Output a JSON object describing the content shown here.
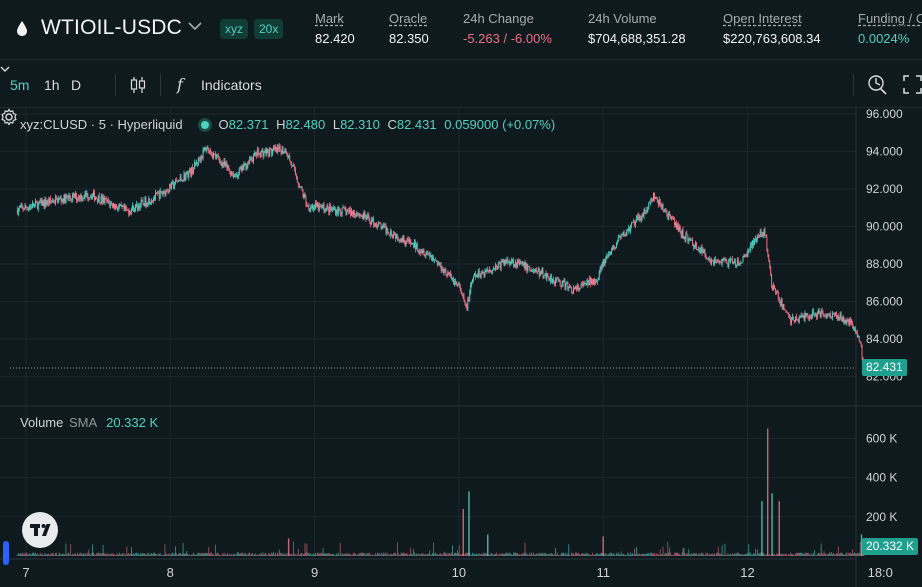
{
  "header": {
    "pair": "WTIOIL-USDC",
    "dex_badge": "xyz",
    "leverage_badge": "20x",
    "stats": [
      {
        "label": "Mark",
        "value": "82.420",
        "tone": "neutral"
      },
      {
        "label": "Oracle",
        "value": "82.350",
        "tone": "neutral"
      },
      {
        "label": "24h Change",
        "value": "-5.263 / -6.00%",
        "tone": "neg"
      },
      {
        "label": "24h Volume",
        "value": "$704,688,351.28",
        "tone": "neutral"
      },
      {
        "label": "Open Interest",
        "value": "$220,763,608.34",
        "tone": "neutral"
      },
      {
        "label": "Funding / C",
        "value": "0.0024%",
        "tone": "pos"
      }
    ]
  },
  "toolbar": {
    "timeframes": [
      "5m",
      "1h",
      "D"
    ],
    "active_timeframe": "5m",
    "indicators_label": "Indicators",
    "fx_glyph": "f"
  },
  "legend": {
    "symbol": "xyz:CLUSD · 5 · Hyperliquid",
    "o_label": "O",
    "o": "82.371",
    "h_label": "H",
    "h": "82.480",
    "l_label": "L",
    "l": "82.310",
    "c_label": "C",
    "c": "82.431",
    "change": "0.059000 (+0.07%)"
  },
  "volume_legend": {
    "label": "Volume",
    "sma_label": "SMA",
    "value": "20.332 K"
  },
  "price_axis_labels": [
    "96.000",
    "94.000",
    "92.000",
    "90.000",
    "88.000",
    "86.000",
    "84.000",
    "82.000"
  ],
  "last_price_tag": "82.431",
  "volume_axis_labels": [
    "600 K",
    "400 K",
    "200 K"
  ],
  "volume_tag": "20.332 K",
  "time_axis_labels": [
    "7",
    "8",
    "9",
    "10",
    "11",
    "12",
    "18:0"
  ],
  "colors": {
    "up": "#50d2c1",
    "down": "#ed7088",
    "background": "#0f1a1f",
    "accent": "#50d2c1"
  },
  "chart_data": {
    "type": "candlestick",
    "interval": "5m",
    "ylim": [
      81.5,
      96.5
    ],
    "volume_ylim": [
      0,
      700000
    ],
    "x_ticks": [
      "7",
      "8",
      "9",
      "10",
      "11",
      "12",
      "18:0"
    ],
    "close_path": [
      {
        "day": 6.94,
        "price": 90.9
      },
      {
        "day": 7.2,
        "price": 91.4
      },
      {
        "day": 7.45,
        "price": 91.7
      },
      {
        "day": 7.7,
        "price": 90.8
      },
      {
        "day": 7.95,
        "price": 91.8
      },
      {
        "day": 8.15,
        "price": 93.0
      },
      {
        "day": 8.25,
        "price": 94.2
      },
      {
        "day": 8.45,
        "price": 92.7
      },
      {
        "day": 8.6,
        "price": 93.9
      },
      {
        "day": 8.8,
        "price": 94.1
      },
      {
        "day": 8.95,
        "price": 91.1
      },
      {
        "day": 9.3,
        "price": 90.7
      },
      {
        "day": 9.55,
        "price": 89.6
      },
      {
        "day": 9.8,
        "price": 88.5
      },
      {
        "day": 10.0,
        "price": 86.8
      },
      {
        "day": 10.05,
        "price": 85.6
      },
      {
        "day": 10.1,
        "price": 87.3
      },
      {
        "day": 10.35,
        "price": 88.2
      },
      {
        "day": 10.6,
        "price": 87.4
      },
      {
        "day": 10.8,
        "price": 86.6
      },
      {
        "day": 10.95,
        "price": 87.2
      },
      {
        "day": 11.0,
        "price": 88.0
      },
      {
        "day": 11.1,
        "price": 89.2
      },
      {
        "day": 11.3,
        "price": 90.9
      },
      {
        "day": 11.35,
        "price": 91.6
      },
      {
        "day": 11.55,
        "price": 89.6
      },
      {
        "day": 11.75,
        "price": 88.2
      },
      {
        "day": 11.95,
        "price": 88.0
      },
      {
        "day": 12.05,
        "price": 89.3
      },
      {
        "day": 12.12,
        "price": 89.7
      },
      {
        "day": 12.17,
        "price": 86.8
      },
      {
        "day": 12.3,
        "price": 85.0
      },
      {
        "day": 12.5,
        "price": 85.4
      },
      {
        "day": 12.65,
        "price": 85.2
      },
      {
        "day": 12.75,
        "price": 84.6
      },
      {
        "day": 12.79,
        "price": 83.4
      },
      {
        "day": 12.81,
        "price": 82.43
      }
    ],
    "volume_spikes": [
      {
        "day": 8.82,
        "volume": 90000
      },
      {
        "day": 10.07,
        "volume": 330000
      },
      {
        "day": 10.03,
        "volume": 240000
      },
      {
        "day": 10.2,
        "volume": 110000
      },
      {
        "day": 11.0,
        "volume": 100000
      },
      {
        "day": 12.1,
        "volume": 280000
      },
      {
        "day": 12.14,
        "volume": 650000
      },
      {
        "day": 12.17,
        "volume": 320000
      },
      {
        "day": 12.22,
        "volume": 280000
      },
      {
        "day": 12.79,
        "volume": 110000
      }
    ]
  }
}
